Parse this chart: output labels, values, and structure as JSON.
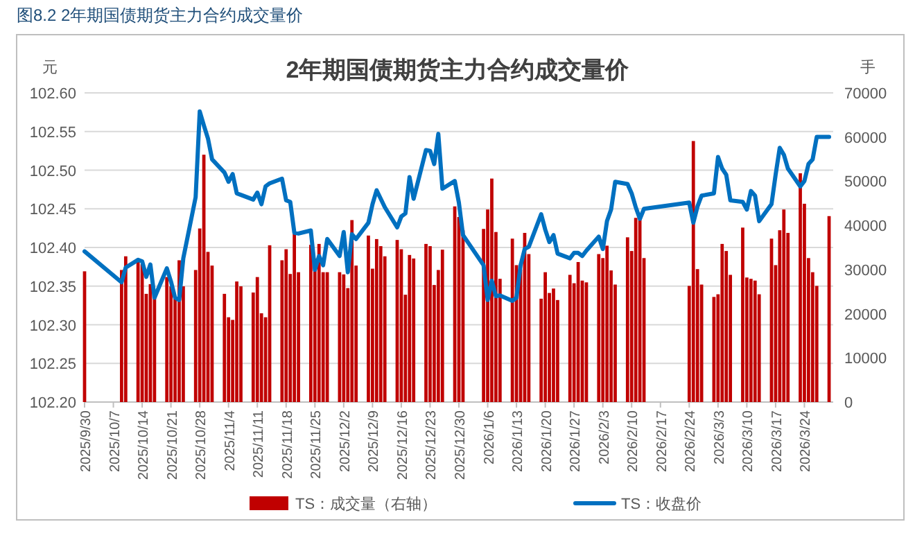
{
  "chart_data": {
    "type": "bar",
    "title": "2年期国债期货主力合约成交量价",
    "annotations": [
      "图8.2 2年期国债期货主力合约成交量价"
    ],
    "ylabel": "元",
    "y2label": "手",
    "x": [
      "2025-09-30",
      "2025-10-09",
      "2025-10-10",
      "2025-10-13",
      "2025-10-14",
      "2025-10-15",
      "2025-10-16",
      "2025-10-17",
      "2025-10-20",
      "2025-10-21",
      "2025-10-22",
      "2025-10-23",
      "2025-10-24",
      "2025-10-27",
      "2025-10-28",
      "2025-10-29",
      "2025-10-30",
      "2025-10-31",
      "2025-11-03",
      "2025-11-04",
      "2025-11-05",
      "2025-11-06",
      "2025-11-07",
      "2025-11-10",
      "2025-11-11",
      "2025-11-12",
      "2025-11-13",
      "2025-11-14",
      "2025-11-17",
      "2025-11-18",
      "2025-11-19",
      "2025-11-20",
      "2025-11-21",
      "2025-11-24",
      "2025-11-25",
      "2025-11-26",
      "2025-11-27",
      "2025-11-28",
      "2025-12-01",
      "2025-12-02",
      "2025-12-03",
      "2025-12-04",
      "2025-12-05",
      "2025-12-08",
      "2025-12-09",
      "2025-12-10",
      "2025-12-11",
      "2025-12-12",
      "2025-12-15",
      "2025-12-16",
      "2025-12-17",
      "2025-12-18",
      "2025-12-19",
      "2025-12-22",
      "2025-12-23",
      "2025-12-24",
      "2025-12-25",
      "2025-12-26",
      "2025-12-29",
      "2025-12-30",
      "2025-12-31",
      "2026-01-05",
      "2026-01-06",
      "2026-01-07",
      "2026-01-08",
      "2026-01-09",
      "2026-01-12",
      "2026-01-13",
      "2026-01-14",
      "2026-01-15",
      "2026-01-16",
      "2026-01-19",
      "2026-01-20",
      "2026-01-21",
      "2026-01-22",
      "2026-01-23",
      "2026-01-26",
      "2026-01-27",
      "2026-01-28",
      "2026-01-29",
      "2026-01-30",
      "2026-02-02",
      "2026-02-03",
      "2026-02-04",
      "2026-02-05",
      "2026-02-06",
      "2026-02-09",
      "2026-02-10",
      "2026-02-11",
      "2026-02-12",
      "2026-02-13",
      "2026-02-24",
      "2026-02-25",
      "2026-02-26",
      "2026-02-27",
      "2026-03-02",
      "2026-03-03",
      "2026-03-04",
      "2026-03-05",
      "2026-03-06",
      "2026-03-09",
      "2026-03-10",
      "2026-03-11",
      "2026-03-12",
      "2026-03-13",
      "2026-03-16",
      "2026-03-17",
      "2026-03-18",
      "2026-03-19",
      "2026-03-20",
      "2026-03-23",
      "2026-03-24",
      "2026-03-25",
      "2026-03-26",
      "2026-03-27",
      "2026-03-30"
    ],
    "series": [
      {
        "name": "TS：成交量（右轴）",
        "axis": "y2",
        "color": "#c00000",
        "values": [
          29600,
          29900,
          33000,
          31700,
          31200,
          24500,
          26700,
          24000,
          28300,
          26200,
          23600,
          32100,
          26200,
          29900,
          39300,
          56000,
          34000,
          30900,
          24500,
          19200,
          18600,
          27300,
          26200,
          24800,
          28300,
          20100,
          19200,
          35500,
          32100,
          34600,
          29000,
          38700,
          29400,
          35600,
          32500,
          35800,
          29400,
          29400,
          29400,
          28900,
          25800,
          41200,
          30900,
          37700,
          30200,
          36900,
          35300,
          33000,
          36700,
          34600,
          24300,
          33300,
          32500,
          35800,
          35300,
          26500,
          29900,
          34500,
          44300,
          41900,
          38900,
          39200,
          43600,
          50600,
          38500,
          27900,
          37000,
          31000,
          30000,
          38300,
          33500,
          23400,
          29400,
          24700,
          25700,
          23100,
          28800,
          26900,
          31700,
          27500,
          27100,
          33500,
          32600,
          35400,
          29800,
          26600,
          37300,
          34200,
          41700,
          41900,
          32600,
          26300,
          59100,
          30100,
          26600,
          23800,
          24400,
          35800,
          34200,
          28800,
          39500,
          28200,
          27900,
          27500,
          24400,
          37000,
          31000,
          38900,
          43600,
          38300,
          51800,
          44900,
          32600,
          29400,
          26300,
          42100
        ]
      },
      {
        "name": "TS：收盘价",
        "type": "line",
        "color": "#0070c0",
        "values": [
          102.395,
          102.355,
          102.374,
          102.384,
          102.382,
          102.362,
          102.378,
          102.335,
          102.373,
          102.356,
          102.335,
          102.332,
          102.386,
          102.465,
          102.576,
          102.558,
          102.541,
          102.514,
          102.497,
          102.485,
          102.495,
          102.47,
          102.468,
          102.462,
          102.471,
          102.456,
          102.479,
          102.483,
          102.489,
          102.461,
          102.459,
          102.419,
          102.418,
          102.422,
          102.371,
          102.389,
          102.377,
          102.411,
          102.389,
          102.42,
          102.368,
          102.417,
          102.411,
          102.432,
          102.456,
          102.474,
          102.463,
          102.452,
          102.426,
          102.44,
          102.444,
          102.491,
          102.463,
          102.526,
          102.525,
          102.508,
          102.547,
          102.476,
          102.486,
          102.458,
          102.416,
          102.377,
          102.332,
          102.357,
          102.337,
          102.338,
          102.331,
          102.335,
          102.377,
          102.398,
          102.401,
          102.443,
          102.423,
          102.407,
          102.416,
          102.392,
          102.386,
          102.393,
          102.393,
          102.389,
          102.396,
          102.414,
          102.398,
          102.434,
          102.449,
          102.485,
          102.482,
          102.47,
          102.452,
          102.437,
          102.45,
          102.458,
          102.432,
          102.453,
          102.467,
          102.47,
          102.517,
          102.502,
          102.494,
          102.461,
          102.459,
          102.449,
          102.473,
          102.467,
          102.434,
          102.456,
          102.494,
          102.529,
          102.52,
          102.502,
          102.479,
          102.486,
          102.508,
          102.514,
          102.543,
          102.543
        ]
      }
    ],
    "xlim": [
      "2025-09-30",
      "2026-03-31"
    ],
    "xticks": [
      {
        "value": "2025-09-30",
        "label": "2025/9/30"
      },
      {
        "value": "2025-10-07",
        "label": "2025/10/7"
      },
      {
        "value": "2025-10-14",
        "label": "2025/10/14"
      },
      {
        "value": "2025-10-21",
        "label": "2025/10/21"
      },
      {
        "value": "2025-10-28",
        "label": "2025/10/28"
      },
      {
        "value": "2025-11-04",
        "label": "2025/11/4"
      },
      {
        "value": "2025-11-11",
        "label": "2025/11/11"
      },
      {
        "value": "2025-11-18",
        "label": "2025/11/18"
      },
      {
        "value": "2025-11-25",
        "label": "2025/11/25"
      },
      {
        "value": "2025-12-02",
        "label": "2025/12/2"
      },
      {
        "value": "2025-12-09",
        "label": "2025/12/9"
      },
      {
        "value": "2025-12-16",
        "label": "2025/12/16"
      },
      {
        "value": "2025-12-23",
        "label": "2025/12/23"
      },
      {
        "value": "2025-12-30",
        "label": "2025/12/30"
      },
      {
        "value": "2026-01-06",
        "label": "2026/1/6"
      },
      {
        "value": "2026-01-13",
        "label": "2026/1/13"
      },
      {
        "value": "2026-01-20",
        "label": "2026/1/20"
      },
      {
        "value": "2026-01-27",
        "label": "2026/1/27"
      },
      {
        "value": "2026-02-03",
        "label": "2026/2/3"
      },
      {
        "value": "2026-02-10",
        "label": "2026/2/10"
      },
      {
        "value": "2026-02-17",
        "label": "2026/2/17"
      },
      {
        "value": "2026-02-24",
        "label": "2026/2/24"
      },
      {
        "value": "2026-03-03",
        "label": "2026/3/3"
      },
      {
        "value": "2026-03-10",
        "label": "2026/3/10"
      },
      {
        "value": "2026-03-17",
        "label": "2026/3/17"
      },
      {
        "value": "2026-03-24",
        "label": "2026/3/24"
      }
    ],
    "ylim": [
      102.2,
      102.6
    ],
    "yticks": [
      {
        "value": 102.2,
        "label": "102.20"
      },
      {
        "value": 102.25,
        "label": "102.25"
      },
      {
        "value": 102.3,
        "label": "102.30"
      },
      {
        "value": 102.35,
        "label": "102.35"
      },
      {
        "value": 102.4,
        "label": "102.40"
      },
      {
        "value": 102.45,
        "label": "102.45"
      },
      {
        "value": 102.5,
        "label": "102.50"
      },
      {
        "value": 102.55,
        "label": "102.55"
      },
      {
        "value": 102.6,
        "label": "102.60"
      }
    ],
    "y2lim": [
      0,
      70000
    ],
    "y2ticks": [
      0,
      10000,
      20000,
      30000,
      40000,
      50000,
      60000,
      70000
    ],
    "grid": "y",
    "legend": "bottom"
  }
}
